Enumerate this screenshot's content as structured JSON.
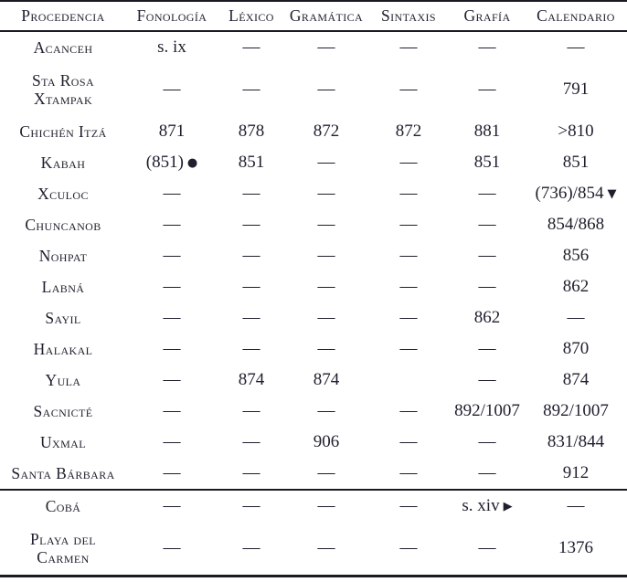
{
  "table": {
    "headers": [
      "Procedencia",
      "Fonología",
      "Léxico",
      "Gramática",
      "Sintaxis",
      "Grafía",
      "Calendario"
    ],
    "rows": [
      {
        "site_lines": [
          "Acanceh"
        ],
        "cells": [
          "s. ix",
          "—",
          "—",
          "—",
          "—",
          "—"
        ]
      },
      {
        "site_lines": [
          "Sta Rosa",
          "Xtampak"
        ],
        "tall": true,
        "cells": [
          "—",
          "—",
          "—",
          "—",
          "—",
          "791"
        ]
      },
      {
        "site_lines": [
          "Chichén Itzá"
        ],
        "cells": [
          "871",
          "878",
          "872",
          "872",
          "881",
          ">810"
        ]
      },
      {
        "site_lines": [
          "Kabah"
        ],
        "cells": [
          {
            "text": "(851)",
            "icon": "black-circle-icon"
          },
          "851",
          "—",
          "—",
          "851",
          "851"
        ]
      },
      {
        "site_lines": [
          "Xculoc"
        ],
        "cells": [
          "—",
          "—",
          "—",
          "—",
          "—",
          {
            "text": "(736)/854",
            "icon": "triangle-down-icon"
          }
        ]
      },
      {
        "site_lines": [
          "Chuncanob"
        ],
        "cells": [
          "—",
          "—",
          "—",
          "—",
          "—",
          "854/868"
        ]
      },
      {
        "site_lines": [
          "Nohpat"
        ],
        "cells": [
          "—",
          "—",
          "—",
          "—",
          "—",
          "856"
        ]
      },
      {
        "site_lines": [
          "Labná"
        ],
        "cells": [
          "—",
          "—",
          "—",
          "—",
          "—",
          "862"
        ]
      },
      {
        "site_lines": [
          "Sayil"
        ],
        "cells": [
          "—",
          "—",
          "—",
          "—",
          "862",
          "—"
        ]
      },
      {
        "site_lines": [
          "Halakal"
        ],
        "cells": [
          "—",
          "—",
          "—",
          "—",
          "—",
          "870"
        ]
      },
      {
        "site_lines": [
          "Yula"
        ],
        "cells": [
          "—",
          "874",
          "874",
          "",
          "—",
          "874"
        ]
      },
      {
        "site_lines": [
          "Sacnicté"
        ],
        "cells": [
          "—",
          "—",
          "—",
          "—",
          "892/1007",
          "892/1007"
        ]
      },
      {
        "site_lines": [
          "Uxmal"
        ],
        "cells": [
          "—",
          "—",
          "906",
          "—",
          "—",
          "831/844"
        ]
      },
      {
        "site_lines": [
          "Santa Bárbara"
        ],
        "separator_after": true,
        "cells": [
          "—",
          "—",
          "—",
          "—",
          "—",
          "912"
        ]
      },
      {
        "site_lines": [
          "Cobá"
        ],
        "cells": [
          "—",
          "—",
          "—",
          "—",
          {
            "text": "s. xiv",
            "icon": "triangle-right-icon"
          },
          "—"
        ]
      },
      {
        "site_lines": [
          "Playa del",
          "Carmen"
        ],
        "tall": true,
        "cells": [
          "—",
          "—",
          "—",
          "—",
          "—",
          "1376"
        ]
      }
    ]
  },
  "icons": {
    "black-circle-icon": "●",
    "triangle-down-icon": "▼",
    "triangle-right-icon": "▶"
  },
  "colors": {
    "text": "#1f1f2e",
    "rule": "#1a1a24",
    "background": "#ffffff"
  }
}
